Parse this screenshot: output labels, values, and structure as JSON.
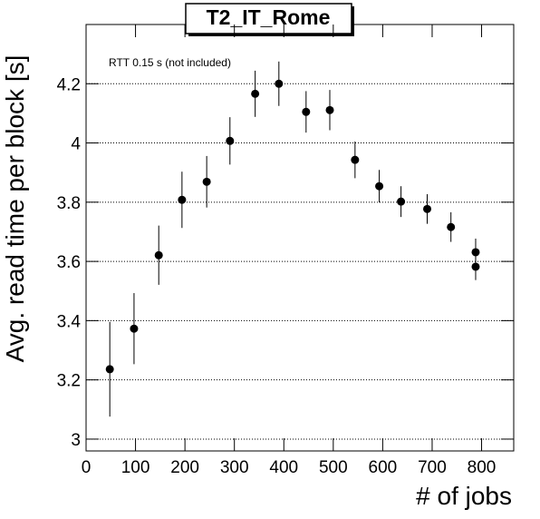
{
  "chart_data": {
    "type": "scatter",
    "title": "T2_IT_Rome",
    "annotation": "RTT 0.15 s (not included)",
    "x_label": "# of jobs",
    "y_label": "Avg. read time per block [s]",
    "x": [
      48,
      97,
      147,
      194,
      244,
      291,
      342,
      390,
      445,
      493,
      544,
      593,
      637,
      690,
      738,
      788,
      788
    ],
    "series": [
      {
        "color": "#000000",
        "values": [
          3.236,
          3.373,
          3.621,
          3.808,
          3.869,
          4.007,
          4.166,
          4.2,
          4.105,
          4.111,
          3.943,
          3.854,
          3.802,
          3.777,
          3.716,
          3.631,
          3.582
        ],
        "errors": [
          0.16,
          0.12,
          0.1,
          0.095,
          0.087,
          0.08,
          0.078,
          0.075,
          0.07,
          0.068,
          0.062,
          0.055,
          0.052,
          0.05,
          0.05,
          0.046,
          0.045
        ]
      }
    ],
    "xlim": [
      0,
      865
    ],
    "ylim": [
      2.96,
      4.4
    ],
    "xticks": [
      0,
      100,
      200,
      300,
      400,
      500,
      600,
      700,
      800
    ],
    "yticks": [
      3,
      3.2,
      3.4,
      3.6,
      3.8,
      4,
      4.2
    ],
    "grid": true
  }
}
